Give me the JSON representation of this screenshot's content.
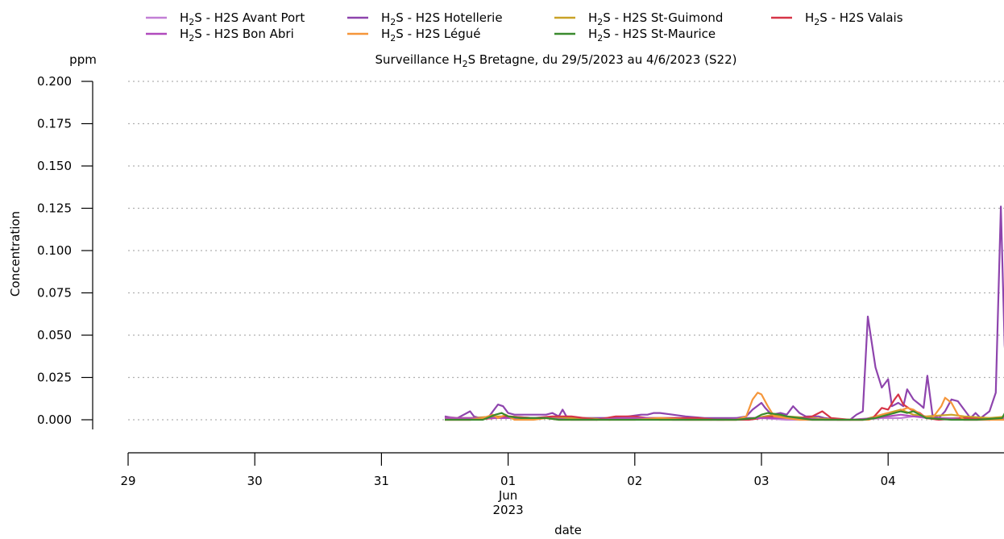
{
  "chart_data": {
    "type": "line",
    "title_prefix": "Surveillance H",
    "title_sub": "2",
    "title_suffix": "S Bretagne, du 29/5/2023 au 4/6/2023 (S22)",
    "xlabel": "date",
    "ylabel": "Concentration",
    "yunit": "ppm",
    "ylim": [
      0,
      0.2
    ],
    "yticks": [
      "0.000",
      "0.025",
      "0.050",
      "0.075",
      "0.100",
      "0.125",
      "0.150",
      "0.175",
      "0.200"
    ],
    "xlim": [
      0,
      6.95
    ],
    "xticks": [
      {
        "x": 0,
        "label": "29"
      },
      {
        "x": 1,
        "label": "30"
      },
      {
        "x": 2,
        "label": "31"
      },
      {
        "x": 3,
        "label": "01"
      },
      {
        "x": 4,
        "label": "02"
      },
      {
        "x": 5,
        "label": "03"
      },
      {
        "x": 6,
        "label": "04"
      }
    ],
    "xtick_sublabel_month": "Jun",
    "xtick_sublabel_year": "2023",
    "grid": "horizontal-dotted",
    "legend_position": "top",
    "legend_prefix": "H",
    "legend_sub": "2",
    "legend_suffix": "S - ",
    "series": [
      {
        "name": "H2S Avant Port",
        "color": "#c27fd6",
        "points": [
          [
            2.5,
            0.002
          ],
          [
            2.6,
            0.001
          ],
          [
            2.8,
            0.001
          ],
          [
            3.0,
            0.001
          ],
          [
            3.2,
            0.001
          ],
          [
            3.4,
            0.001
          ],
          [
            3.6,
            0.001
          ],
          [
            3.8,
            0.001
          ],
          [
            4.0,
            0.001
          ],
          [
            4.2,
            0.001
          ],
          [
            4.4,
            0.001
          ],
          [
            4.6,
            0.0
          ],
          [
            4.8,
            0.001
          ],
          [
            5.0,
            0.001
          ],
          [
            5.2,
            0.0
          ],
          [
            5.4,
            0.0
          ],
          [
            5.6,
            0.0
          ],
          [
            5.8,
            0.0
          ],
          [
            5.95,
            0.001
          ],
          [
            6.1,
            0.001
          ],
          [
            6.2,
            0.002
          ],
          [
            6.3,
            0.001
          ],
          [
            6.5,
            0.001
          ],
          [
            6.7,
            0.001
          ],
          [
            6.9,
            0.001
          ],
          [
            6.95,
            0.002
          ]
        ]
      },
      {
        "name": "H2S Hotellerie",
        "color": "#8e44ad",
        "points": [
          [
            2.5,
            0.002
          ],
          [
            2.55,
            0.001
          ],
          [
            2.6,
            0.001
          ],
          [
            2.65,
            0.003
          ],
          [
            2.7,
            0.005
          ],
          [
            2.73,
            0.002
          ],
          [
            2.78,
            0.001
          ],
          [
            2.85,
            0.002
          ],
          [
            2.92,
            0.009
          ],
          [
            2.96,
            0.008
          ],
          [
            3.0,
            0.004
          ],
          [
            3.05,
            0.003
          ],
          [
            3.15,
            0.003
          ],
          [
            3.3,
            0.003
          ],
          [
            3.35,
            0.004
          ],
          [
            3.4,
            0.002
          ],
          [
            3.43,
            0.006
          ],
          [
            3.46,
            0.002
          ],
          [
            3.55,
            0.001
          ],
          [
            3.7,
            0.001
          ],
          [
            3.8,
            0.001
          ],
          [
            3.95,
            0.002
          ],
          [
            4.05,
            0.003
          ],
          [
            4.1,
            0.003
          ],
          [
            4.15,
            0.004
          ],
          [
            4.2,
            0.004
          ],
          [
            4.3,
            0.003
          ],
          [
            4.4,
            0.002
          ],
          [
            4.55,
            0.001
          ],
          [
            4.7,
            0.001
          ],
          [
            4.8,
            0.001
          ],
          [
            4.88,
            0.002
          ],
          [
            4.93,
            0.006
          ],
          [
            5.0,
            0.01
          ],
          [
            5.03,
            0.007
          ],
          [
            5.08,
            0.003
          ],
          [
            5.15,
            0.004
          ],
          [
            5.2,
            0.003
          ],
          [
            5.25,
            0.008
          ],
          [
            5.3,
            0.004
          ],
          [
            5.35,
            0.002
          ],
          [
            5.45,
            0.002
          ],
          [
            5.5,
            0.001
          ],
          [
            5.6,
            0.0
          ],
          [
            5.7,
            0.0
          ],
          [
            5.75,
            0.003
          ],
          [
            5.8,
            0.005
          ],
          [
            5.84,
            0.061
          ],
          [
            5.9,
            0.031
          ],
          [
            5.95,
            0.019
          ],
          [
            6.0,
            0.024
          ],
          [
            6.03,
            0.008
          ],
          [
            6.08,
            0.01
          ],
          [
            6.12,
            0.008
          ],
          [
            6.15,
            0.018
          ],
          [
            6.2,
            0.012
          ],
          [
            6.25,
            0.009
          ],
          [
            6.28,
            0.007
          ],
          [
            6.31,
            0.026
          ],
          [
            6.35,
            0.003
          ],
          [
            6.4,
            0.001
          ],
          [
            6.45,
            0.005
          ],
          [
            6.5,
            0.012
          ],
          [
            6.55,
            0.011
          ],
          [
            6.6,
            0.006
          ],
          [
            6.65,
            0.001
          ],
          [
            6.69,
            0.004
          ],
          [
            6.73,
            0.001
          ],
          [
            6.8,
            0.005
          ],
          [
            6.85,
            0.016
          ],
          [
            6.89,
            0.126
          ],
          [
            6.92,
            0.044
          ],
          [
            6.95,
            0.014
          ]
        ]
      },
      {
        "name": "H2S St-Guimond",
        "color": "#c9a227",
        "points": [
          [
            2.5,
            0.001
          ],
          [
            2.7,
            0.001
          ],
          [
            2.9,
            0.002
          ],
          [
            3.0,
            0.002
          ],
          [
            3.2,
            0.001
          ],
          [
            3.4,
            0.001
          ],
          [
            3.6,
            0.001
          ],
          [
            3.8,
            0.0
          ],
          [
            4.0,
            0.001
          ],
          [
            4.2,
            0.0
          ],
          [
            4.4,
            0.0
          ],
          [
            4.6,
            0.0
          ],
          [
            4.8,
            0.0
          ],
          [
            4.95,
            0.001
          ],
          [
            5.1,
            0.003
          ],
          [
            5.2,
            0.002
          ],
          [
            5.4,
            0.001
          ],
          [
            5.6,
            0.0
          ],
          [
            5.8,
            0.0
          ],
          [
            5.9,
            0.002
          ],
          [
            6.0,
            0.004
          ],
          [
            6.1,
            0.006
          ],
          [
            6.2,
            0.003
          ],
          [
            6.3,
            0.002
          ],
          [
            6.5,
            0.003
          ],
          [
            6.6,
            0.002
          ],
          [
            6.8,
            0.001
          ],
          [
            6.95,
            0.002
          ]
        ]
      },
      {
        "name": "H2S Valais",
        "color": "#d63447",
        "points": [
          [
            2.5,
            0.0
          ],
          [
            2.7,
            0.0
          ],
          [
            2.9,
            0.001
          ],
          [
            3.0,
            0.002
          ],
          [
            3.2,
            0.001
          ],
          [
            3.35,
            0.002
          ],
          [
            3.5,
            0.002
          ],
          [
            3.6,
            0.001
          ],
          [
            3.7,
            0.0
          ],
          [
            3.85,
            0.002
          ],
          [
            4.0,
            0.002
          ],
          [
            4.1,
            0.001
          ],
          [
            4.3,
            0.001
          ],
          [
            4.5,
            0.001
          ],
          [
            4.65,
            0.0
          ],
          [
            4.8,
            0.0
          ],
          [
            4.9,
            0.0
          ],
          [
            5.0,
            0.001
          ],
          [
            5.1,
            0.002
          ],
          [
            5.2,
            0.001
          ],
          [
            5.3,
            0.001
          ],
          [
            5.4,
            0.002
          ],
          [
            5.48,
            0.005
          ],
          [
            5.55,
            0.001
          ],
          [
            5.7,
            0.0
          ],
          [
            5.8,
            0.0
          ],
          [
            5.88,
            0.001
          ],
          [
            5.95,
            0.007
          ],
          [
            6.0,
            0.006
          ],
          [
            6.05,
            0.012
          ],
          [
            6.08,
            0.015
          ],
          [
            6.12,
            0.009
          ],
          [
            6.18,
            0.006
          ],
          [
            6.25,
            0.004
          ],
          [
            6.3,
            0.001
          ],
          [
            6.4,
            0.0
          ],
          [
            6.6,
            0.001
          ],
          [
            6.8,
            0.0
          ],
          [
            6.95,
            0.001
          ]
        ]
      },
      {
        "name": "H2S Bon Abri",
        "color": "#b04abd",
        "points": [
          [
            2.5,
            0.001
          ],
          [
            2.7,
            0.001
          ],
          [
            2.9,
            0.001
          ],
          [
            3.1,
            0.001
          ],
          [
            3.3,
            0.001
          ],
          [
            3.5,
            0.0
          ],
          [
            3.7,
            0.0
          ],
          [
            3.9,
            0.001
          ],
          [
            4.1,
            0.001
          ],
          [
            4.3,
            0.0
          ],
          [
            4.5,
            0.0
          ],
          [
            4.7,
            0.0
          ],
          [
            4.9,
            0.001
          ],
          [
            5.1,
            0.001
          ],
          [
            5.3,
            0.001
          ],
          [
            5.5,
            0.0
          ],
          [
            5.7,
            0.0
          ],
          [
            5.9,
            0.001
          ],
          [
            6.1,
            0.003
          ],
          [
            6.2,
            0.002
          ],
          [
            6.4,
            0.001
          ],
          [
            6.6,
            0.0
          ],
          [
            6.8,
            0.0
          ],
          [
            6.95,
            0.001
          ]
        ]
      },
      {
        "name": "H2S Légué",
        "color": "#f5963a",
        "points": [
          [
            2.5,
            0.0
          ],
          [
            2.6,
            0.0
          ],
          [
            2.7,
            0.0
          ],
          [
            2.8,
            0.001
          ],
          [
            2.88,
            0.003
          ],
          [
            2.92,
            0.001
          ],
          [
            2.98,
            0.003
          ],
          [
            3.05,
            0.0
          ],
          [
            3.2,
            0.0
          ],
          [
            3.3,
            0.001
          ],
          [
            3.4,
            0.0
          ],
          [
            3.6,
            0.0
          ],
          [
            3.8,
            0.0
          ],
          [
            4.0,
            0.0
          ],
          [
            4.2,
            0.001
          ],
          [
            4.4,
            0.0
          ],
          [
            4.6,
            0.0
          ],
          [
            4.8,
            0.0
          ],
          [
            4.88,
            0.002
          ],
          [
            4.93,
            0.012
          ],
          [
            4.97,
            0.016
          ],
          [
            5.0,
            0.015
          ],
          [
            5.05,
            0.008
          ],
          [
            5.1,
            0.002
          ],
          [
            5.2,
            0.001
          ],
          [
            5.3,
            0.0
          ],
          [
            5.5,
            0.0
          ],
          [
            5.7,
            0.0
          ],
          [
            5.85,
            0.0
          ],
          [
            5.95,
            0.003
          ],
          [
            6.0,
            0.004
          ],
          [
            6.05,
            0.004
          ],
          [
            6.15,
            0.007
          ],
          [
            6.2,
            0.006
          ],
          [
            6.28,
            0.002
          ],
          [
            6.35,
            0.001
          ],
          [
            6.42,
            0.008
          ],
          [
            6.45,
            0.013
          ],
          [
            6.5,
            0.01
          ],
          [
            6.55,
            0.003
          ],
          [
            6.6,
            0.0
          ],
          [
            6.8,
            0.0
          ],
          [
            6.95,
            0.0
          ]
        ]
      },
      {
        "name": "H2S St-Maurice",
        "color": "#3a8a2e",
        "points": [
          [
            2.5,
            0.0
          ],
          [
            2.8,
            0.0
          ],
          [
            2.9,
            0.003
          ],
          [
            2.95,
            0.004
          ],
          [
            3.0,
            0.002
          ],
          [
            3.1,
            0.001
          ],
          [
            3.3,
            0.001
          ],
          [
            3.4,
            0.0
          ],
          [
            3.6,
            0.0
          ],
          [
            3.8,
            0.0
          ],
          [
            4.0,
            0.0
          ],
          [
            4.2,
            0.0
          ],
          [
            4.4,
            0.0
          ],
          [
            4.6,
            0.0
          ],
          [
            4.8,
            0.0
          ],
          [
            4.95,
            0.001
          ],
          [
            5.0,
            0.003
          ],
          [
            5.05,
            0.004
          ],
          [
            5.15,
            0.003
          ],
          [
            5.2,
            0.002
          ],
          [
            5.3,
            0.001
          ],
          [
            5.4,
            0.0
          ],
          [
            5.6,
            0.0
          ],
          [
            5.8,
            0.0
          ],
          [
            5.9,
            0.001
          ],
          [
            6.0,
            0.003
          ],
          [
            6.05,
            0.004
          ],
          [
            6.1,
            0.005
          ],
          [
            6.15,
            0.004
          ],
          [
            6.2,
            0.005
          ],
          [
            6.25,
            0.003
          ],
          [
            6.3,
            0.001
          ],
          [
            6.5,
            0.0
          ],
          [
            6.7,
            0.0
          ],
          [
            6.9,
            0.001
          ],
          [
            6.95,
            0.008
          ]
        ]
      }
    ],
    "legend_order": [
      0,
      4,
      1,
      5,
      2,
      6,
      3
    ]
  }
}
